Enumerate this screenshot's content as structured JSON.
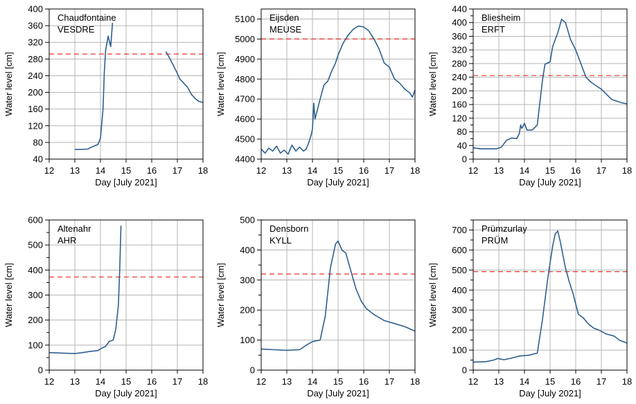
{
  "chart_data": [
    {
      "type": "line",
      "station": "Chaudfontaine",
      "river": "VESDRE",
      "xlabel": "Day [July 2021]",
      "ylabel": "Water level [cm]",
      "xlim": [
        12,
        18
      ],
      "ylim": [
        40,
        400
      ],
      "xticks": [
        12,
        13,
        14,
        15,
        16,
        17,
        18
      ],
      "yticks": [
        40,
        80,
        120,
        160,
        200,
        240,
        280,
        320,
        360,
        400
      ],
      "grid": true,
      "threshold": 292,
      "series": [
        {
          "color": "#2f5f8f",
          "segments": [
            [
              [
                13.0,
                63
              ],
              [
                13.2,
                63
              ],
              [
                13.5,
                64
              ],
              [
                13.7,
                70
              ],
              [
                13.9,
                75
              ],
              [
                14.0,
                90
              ],
              [
                14.1,
                160
              ],
              [
                14.15,
                250
              ],
              [
                14.2,
                300
              ],
              [
                14.3,
                335
              ],
              [
                14.4,
                310
              ],
              [
                14.47,
                367
              ]
            ],
            [
              [
                16.55,
                298
              ],
              [
                16.7,
                282
              ],
              [
                16.8,
                270
              ],
              [
                16.95,
                252
              ],
              [
                17.1,
                232
              ],
              [
                17.25,
                222
              ],
              [
                17.4,
                212
              ],
              [
                17.55,
                195
              ],
              [
                17.7,
                185
              ],
              [
                17.85,
                178
              ],
              [
                18.0,
                176
              ]
            ]
          ]
        }
      ]
    },
    {
      "type": "line",
      "station": "Eijsden",
      "river": "MEUSE",
      "xlabel": "Day [July 2021]",
      "ylabel": "Water level [cm]",
      "xlim": [
        12,
        18
      ],
      "ylim": [
        4400,
        5150
      ],
      "xticks": [
        12,
        13,
        14,
        15,
        16,
        17,
        18
      ],
      "yticks": [
        4400,
        4500,
        4600,
        4700,
        4800,
        4900,
        5000,
        5100
      ],
      "grid": true,
      "threshold": 5000,
      "series": [
        {
          "color": "#2f5f8f",
          "segments": [
            [
              [
                12.0,
                4450
              ],
              [
                12.15,
                4430
              ],
              [
                12.3,
                4455
              ],
              [
                12.45,
                4440
              ],
              [
                12.6,
                4465
              ],
              [
                12.75,
                4430
              ],
              [
                12.9,
                4445
              ],
              [
                13.05,
                4425
              ],
              [
                13.2,
                4470
              ],
              [
                13.35,
                4440
              ],
              [
                13.5,
                4460
              ],
              [
                13.65,
                4440
              ],
              [
                13.75,
                4450
              ],
              [
                13.85,
                4480
              ],
              [
                13.95,
                4520
              ],
              [
                14.0,
                4550
              ],
              [
                14.05,
                4680
              ],
              [
                14.1,
                4600
              ],
              [
                14.2,
                4650
              ],
              [
                14.3,
                4700
              ],
              [
                14.45,
                4770
              ],
              [
                14.6,
                4790
              ],
              [
                14.75,
                4840
              ],
              [
                14.9,
                4880
              ],
              [
                15.0,
                4920
              ],
              [
                15.2,
                4980
              ],
              [
                15.4,
                5020
              ],
              [
                15.6,
                5050
              ],
              [
                15.8,
                5065
              ],
              [
                16.0,
                5060
              ],
              [
                16.2,
                5040
              ],
              [
                16.4,
                5000
              ],
              [
                16.6,
                4950
              ],
              [
                16.8,
                4880
              ],
              [
                17.0,
                4860
              ],
              [
                17.2,
                4800
              ],
              [
                17.4,
                4780
              ],
              [
                17.6,
                4750
              ],
              [
                17.8,
                4730
              ],
              [
                17.9,
                4710
              ],
              [
                18.0,
                4745
              ]
            ]
          ]
        }
      ]
    },
    {
      "type": "line",
      "station": "Bliesheim",
      "river": "ERFT",
      "xlabel": "Day [July 2021]",
      "ylabel": "Water level [cm]",
      "xlim": [
        12,
        18
      ],
      "ylim": [
        0,
        440
      ],
      "xticks": [
        12,
        13,
        14,
        15,
        16,
        17,
        18
      ],
      "yticks": [
        0,
        20,
        40,
        60,
        80,
        100,
        120,
        140,
        160,
        180,
        200,
        220,
        240,
        260,
        280,
        300,
        320,
        340,
        360,
        380,
        400,
        420,
        440
      ],
      "yticklabels": [
        0,
        40,
        80,
        120,
        160,
        200,
        240,
        280,
        320,
        360,
        400,
        440
      ],
      "grid": true,
      "threshold": 245,
      "series": [
        {
          "color": "#2f5f8f",
          "segments": [
            [
              [
                12.0,
                33
              ],
              [
                12.3,
                30
              ],
              [
                12.6,
                30
              ],
              [
                12.9,
                30
              ],
              [
                13.1,
                35
              ],
              [
                13.3,
                55
              ],
              [
                13.5,
                62
              ],
              [
                13.7,
                60
              ],
              [
                13.8,
                75
              ],
              [
                13.85,
                100
              ],
              [
                13.9,
                90
              ],
              [
                14.0,
                105
              ],
              [
                14.1,
                85
              ],
              [
                14.3,
                85
              ],
              [
                14.5,
                100
              ],
              [
                14.7,
                230
              ],
              [
                14.8,
                278
              ],
              [
                15.0,
                285
              ],
              [
                15.1,
                330
              ],
              [
                15.3,
                370
              ],
              [
                15.45,
                410
              ],
              [
                15.6,
                400
              ],
              [
                15.8,
                350
              ],
              [
                16.0,
                320
              ],
              [
                16.2,
                280
              ],
              [
                16.4,
                240
              ],
              [
                16.6,
                225
              ],
              [
                16.8,
                215
              ],
              [
                17.0,
                205
              ],
              [
                17.2,
                190
              ],
              [
                17.4,
                175
              ],
              [
                17.6,
                170
              ],
              [
                17.8,
                165
              ],
              [
                18.0,
                162
              ]
            ]
          ]
        }
      ]
    },
    {
      "type": "line",
      "station": "Altenahr",
      "river": "AHR",
      "xlabel": "Day [July 2021]",
      "ylabel": "Water level [cm]",
      "xlim": [
        12,
        18
      ],
      "ylim": [
        0,
        600
      ],
      "xticks": [
        12,
        13,
        14,
        15,
        16,
        17,
        18
      ],
      "yticks": [
        0,
        50,
        100,
        150,
        200,
        250,
        300,
        350,
        400,
        450,
        500,
        550,
        600
      ],
      "yticklabels": [
        0,
        100,
        200,
        300,
        400,
        500,
        600
      ],
      "grid": true,
      "threshold": 372,
      "series": [
        {
          "color": "#2f5f8f",
          "segments": [
            [
              [
                12.0,
                70
              ],
              [
                12.5,
                68
              ],
              [
                13.0,
                66
              ],
              [
                13.3,
                70
              ],
              [
                13.6,
                75
              ],
              [
                13.9,
                78
              ],
              [
                14.0,
                85
              ],
              [
                14.2,
                95
              ],
              [
                14.35,
                115
              ],
              [
                14.5,
                120
              ],
              [
                14.6,
                165
              ],
              [
                14.7,
                260
              ],
              [
                14.75,
                400
              ],
              [
                14.8,
                577
              ]
            ]
          ]
        }
      ]
    },
    {
      "type": "line",
      "station": "Densborn",
      "river": "KYLL",
      "xlabel": "Day [July 2021]",
      "ylabel": "Water level [cm]",
      "xlim": [
        12,
        18
      ],
      "ylim": [
        0,
        500
      ],
      "xticks": [
        12,
        13,
        14,
        15,
        16,
        17,
        18
      ],
      "yticks": [
        0,
        50,
        100,
        150,
        200,
        250,
        300,
        350,
        400,
        450,
        500
      ],
      "yticklabels": [
        0,
        100,
        200,
        300,
        400,
        500
      ],
      "grid": true,
      "threshold": 320,
      "series": [
        {
          "color": "#2f5f8f",
          "segments": [
            [
              [
                12.0,
                70
              ],
              [
                12.5,
                68
              ],
              [
                13.0,
                66
              ],
              [
                13.5,
                68
              ],
              [
                13.8,
                85
              ],
              [
                14.0,
                95
              ],
              [
                14.3,
                100
              ],
              [
                14.5,
                180
              ],
              [
                14.7,
                340
              ],
              [
                14.9,
                420
              ],
              [
                15.0,
                430
              ],
              [
                15.15,
                400
              ],
              [
                15.3,
                390
              ],
              [
                15.5,
                330
              ],
              [
                15.7,
                270
              ],
              [
                15.9,
                230
              ],
              [
                16.1,
                205
              ],
              [
                16.4,
                185
              ],
              [
                16.8,
                165
              ],
              [
                17.2,
                155
              ],
              [
                17.6,
                145
              ],
              [
                18.0,
                130
              ]
            ]
          ]
        }
      ]
    },
    {
      "type": "line",
      "station": "Prümzurlay",
      "river": "PRÜM",
      "xlabel": "Day [July 2021]",
      "ylabel": "Water level [cm]",
      "xlim": [
        12,
        18
      ],
      "ylim": [
        0,
        750
      ],
      "xticks": [
        12,
        13,
        14,
        15,
        16,
        17,
        18
      ],
      "yticks": [
        0,
        50,
        100,
        150,
        200,
        250,
        300,
        350,
        400,
        450,
        500,
        550,
        600,
        650,
        700,
        750
      ],
      "yticklabels": [
        0,
        100,
        200,
        300,
        400,
        500,
        600,
        700
      ],
      "grid": true,
      "threshold": 492,
      "series": [
        {
          "color": "#2f5f8f",
          "segments": [
            [
              [
                12.0,
                40
              ],
              [
                12.5,
                42
              ],
              [
                12.8,
                50
              ],
              [
                12.95,
                58
              ],
              [
                13.2,
                52
              ],
              [
                13.5,
                60
              ],
              [
                13.8,
                70
              ],
              [
                14.2,
                75
              ],
              [
                14.5,
                85
              ],
              [
                14.7,
                250
              ],
              [
                14.9,
                450
              ],
              [
                15.1,
                620
              ],
              [
                15.2,
                680
              ],
              [
                15.3,
                695
              ],
              [
                15.4,
                640
              ],
              [
                15.6,
                510
              ],
              [
                15.75,
                440
              ],
              [
                15.9,
                380
              ],
              [
                16.1,
                280
              ],
              [
                16.3,
                260
              ],
              [
                16.5,
                230
              ],
              [
                16.7,
                210
              ],
              [
                16.9,
                200
              ],
              [
                17.2,
                180
              ],
              [
                17.5,
                170
              ],
              [
                17.7,
                150
              ],
              [
                17.9,
                140
              ],
              [
                18.0,
                135
              ]
            ]
          ]
        }
      ]
    }
  ]
}
